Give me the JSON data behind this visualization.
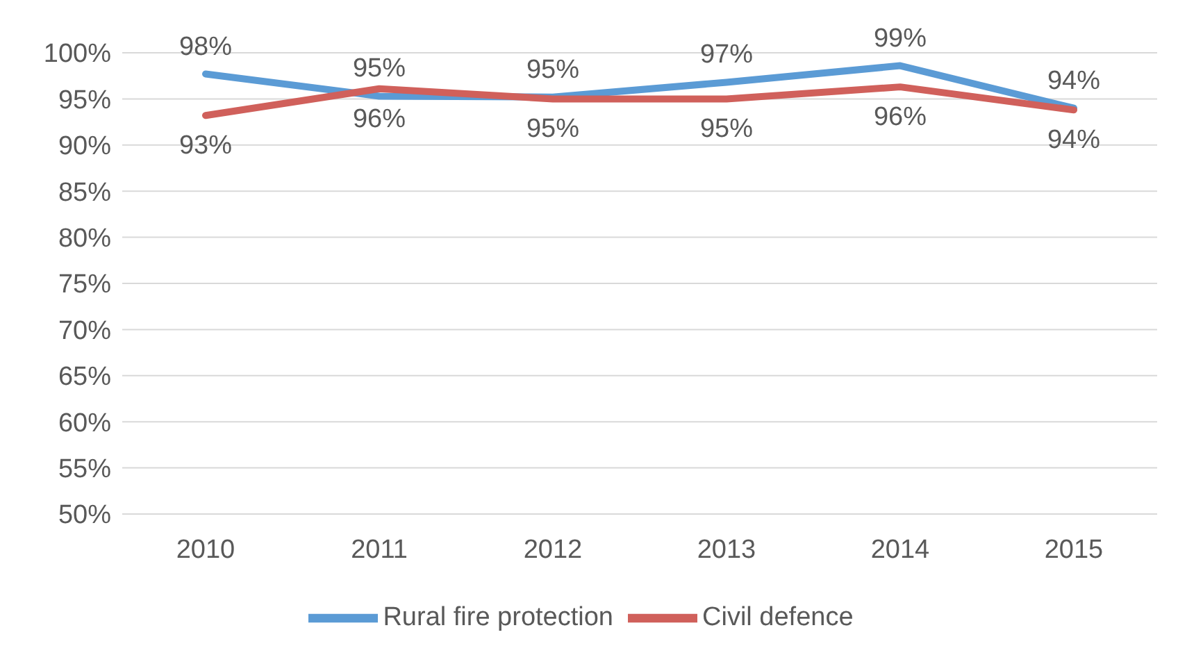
{
  "chart_data": {
    "type": "line",
    "categories": [
      "2010",
      "2011",
      "2012",
      "2013",
      "2014",
      "2015"
    ],
    "series": [
      {
        "name": "Rural fire protection",
        "color": "#5b9bd5",
        "values": [
          97.7,
          95.3,
          95.2,
          96.8,
          98.6,
          94.0
        ],
        "value_labels": [
          "98%",
          "95%",
          "95%",
          "97%",
          "99%",
          "94%"
        ]
      },
      {
        "name": "Civil defence",
        "color": "#d0605b",
        "values": [
          93.2,
          96.1,
          95.0,
          95.0,
          96.3,
          93.8
        ],
        "value_labels": [
          "93%",
          "96%",
          "95%",
          "95%",
          "96%",
          "94%"
        ]
      }
    ],
    "ylim": [
      50,
      100
    ],
    "yticks": [
      {
        "value": 50,
        "label": "50%"
      },
      {
        "value": 55,
        "label": "55%"
      },
      {
        "value": 60,
        "label": "60%"
      },
      {
        "value": 65,
        "label": "65%"
      },
      {
        "value": 70,
        "label": "70%"
      },
      {
        "value": 75,
        "label": "75%"
      },
      {
        "value": 80,
        "label": "80%"
      },
      {
        "value": 85,
        "label": "85%"
      },
      {
        "value": 90,
        "label": "90%"
      },
      {
        "value": 95,
        "label": "95%"
      },
      {
        "value": 100,
        "label": "100%"
      }
    ],
    "grid": "y",
    "legend": "bottom",
    "marker": "none",
    "line_style": "solid"
  }
}
